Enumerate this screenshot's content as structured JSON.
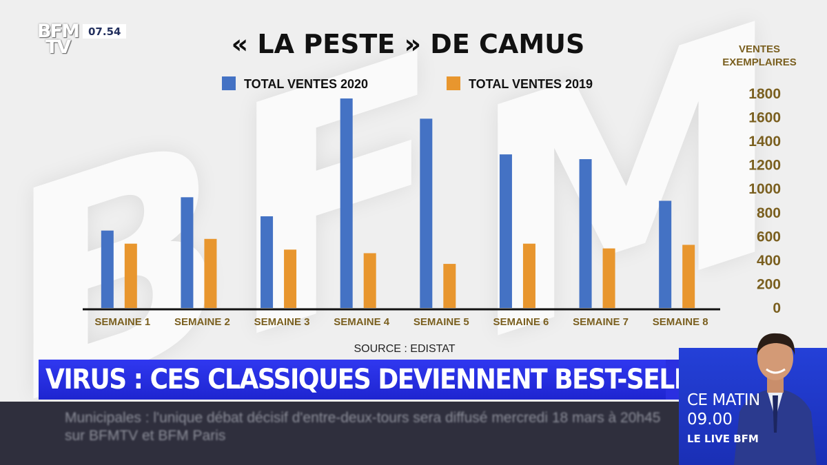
{
  "channel": {
    "logo_line1": "BFM",
    "logo_line2": "TV",
    "clock": "07.54"
  },
  "chart_data": {
    "type": "bar",
    "title": "« LA PESTE » DE CAMUS",
    "ylabel": "VENTES EXEMPLAIRES",
    "ylabel_line1": "VENTES",
    "ylabel_line2": "EXEMPLAIRES",
    "categories": [
      "SEMAINE 1",
      "SEMAINE 2",
      "SEMAINE 3",
      "SEMAINE 4",
      "SEMAINE 5",
      "SEMAINE 6",
      "SEMAINE 7",
      "SEMAINE 8"
    ],
    "series": [
      {
        "name": "TOTAL VENTES 2020",
        "color": "#4472c4",
        "values": [
          650,
          930,
          770,
          1760,
          1590,
          1290,
          1250,
          900
        ]
      },
      {
        "name": "TOTAL VENTES 2019",
        "color": "#e8962e",
        "values": [
          540,
          580,
          490,
          460,
          370,
          540,
          500,
          530
        ]
      }
    ],
    "ylim": [
      0,
      1800
    ],
    "yticks": [
      "0",
      "200",
      "400",
      "600",
      "800",
      "1000",
      "1200",
      "1400",
      "1600",
      "1800"
    ],
    "source": "SOURCE : EDISTAT",
    "legend_position": "top"
  },
  "banner": {
    "headline": "VIRUS : CES CLASSIQUES DEVIENNENT BEST-SELLERS"
  },
  "ticker": {
    "text": "Municipales : l'unique débat décisif d'entre-deux-tours sera diffusé mercredi 18 mars à 20h45 sur BFMTV et BFM Paris"
  },
  "live": {
    "line1": "CE MATIN",
    "line2": "09.00",
    "line3": "LE LIVE BFM"
  },
  "colors": {
    "axis_text": "#7a5f1f",
    "headline_bg": "#2a2fe0",
    "ticker_bg": "#2f2f3d"
  }
}
